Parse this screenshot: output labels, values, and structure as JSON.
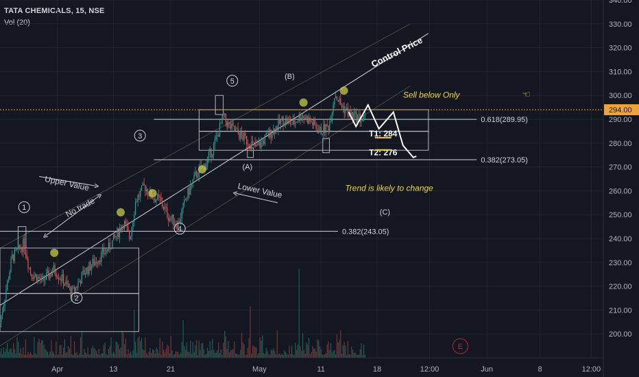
{
  "header": {
    "symbol": "TATA CHEMICALS, 15, NSE",
    "indicator": "Vol (20)"
  },
  "chart_data": {
    "type": "candlestick",
    "ylim": [
      190,
      340
    ],
    "y_ticks": [
      "340.00",
      "330.00",
      "320.00",
      "310.00",
      "300.00",
      "290.00",
      "280.00",
      "270.00",
      "260.00",
      "250.00",
      "240.00",
      "230.00",
      "220.00",
      "210.00",
      "200.00"
    ],
    "x_ticks": [
      "Apr",
      "13",
      "21",
      "May",
      "11",
      "18",
      "12:00",
      "Jun",
      "8",
      "12:00"
    ],
    "current_price": {
      "value": 294,
      "label": "294.00"
    },
    "price_path": [
      {
        "t": 0.0,
        "p": 205
      },
      {
        "t": 0.02,
        "p": 232
      },
      {
        "t": 0.04,
        "p": 238
      },
      {
        "t": 0.05,
        "p": 226
      },
      {
        "t": 0.07,
        "p": 222
      },
      {
        "t": 0.09,
        "p": 227
      },
      {
        "t": 0.1,
        "p": 224
      },
      {
        "t": 0.12,
        "p": 217
      },
      {
        "t": 0.14,
        "p": 226
      },
      {
        "t": 0.16,
        "p": 231
      },
      {
        "t": 0.18,
        "p": 236
      },
      {
        "t": 0.19,
        "p": 240
      },
      {
        "t": 0.205,
        "p": 247
      },
      {
        "t": 0.215,
        "p": 240
      },
      {
        "t": 0.225,
        "p": 256
      },
      {
        "t": 0.24,
        "p": 262
      },
      {
        "t": 0.25,
        "p": 258
      },
      {
        "t": 0.265,
        "p": 256
      },
      {
        "t": 0.28,
        "p": 249
      },
      {
        "t": 0.295,
        "p": 246
      },
      {
        "t": 0.31,
        "p": 258
      },
      {
        "t": 0.325,
        "p": 267
      },
      {
        "t": 0.34,
        "p": 271
      },
      {
        "t": 0.355,
        "p": 279
      },
      {
        "t": 0.37,
        "p": 291
      },
      {
        "t": 0.38,
        "p": 287
      },
      {
        "t": 0.395,
        "p": 284
      },
      {
        "t": 0.41,
        "p": 281
      },
      {
        "t": 0.425,
        "p": 278
      },
      {
        "t": 0.44,
        "p": 282
      },
      {
        "t": 0.455,
        "p": 286
      },
      {
        "t": 0.47,
        "p": 290
      },
      {
        "t": 0.485,
        "p": 288
      },
      {
        "t": 0.5,
        "p": 292
      },
      {
        "t": 0.515,
        "p": 289
      },
      {
        "t": 0.53,
        "p": 285
      },
      {
        "t": 0.545,
        "p": 287
      },
      {
        "t": 0.555,
        "p": 301
      },
      {
        "t": 0.565,
        "p": 296
      },
      {
        "t": 0.58,
        "p": 292
      },
      {
        "t": 0.6,
        "p": 290
      }
    ],
    "levels": [
      {
        "label": "0.618(289.95)",
        "value": 289.95
      },
      {
        "label": "0.382(273.05)",
        "value": 273.05
      },
      {
        "label": "0.382(243.05)",
        "value": 243.05
      }
    ],
    "targets": [
      {
        "label": "T1: 284",
        "value": 284
      },
      {
        "label": "T2: 276",
        "value": 276
      }
    ],
    "wave_labels": [
      {
        "label": "1",
        "style": "circle",
        "t": 0.04,
        "p": 252
      },
      {
        "label": "2",
        "style": "circle",
        "t": 0.127,
        "p": 214
      },
      {
        "label": "3",
        "style": "circle",
        "t": 0.232,
        "p": 282
      },
      {
        "label": "4",
        "style": "circle",
        "t": 0.298,
        "p": 243
      },
      {
        "label": "5",
        "style": "circle",
        "t": 0.385,
        "p": 305
      },
      {
        "label": "(A)",
        "style": "text",
        "t": 0.41,
        "p": 269
      },
      {
        "label": "(B)",
        "style": "text",
        "t": 0.48,
        "p": 307
      },
      {
        "label": "(C)",
        "style": "text",
        "t": 0.638,
        "p": 250
      }
    ],
    "annotations": [
      {
        "text": "Control Price",
        "color": "#ffffff",
        "bold": true,
        "angle": -27,
        "t": 0.66,
        "p": 317
      },
      {
        "text": "Upper Value",
        "color": "#d1d4dc",
        "angle": 12,
        "t": 0.11,
        "p": 262
      },
      {
        "text": "No trade",
        "color": "#d1d4dc",
        "angle": -28,
        "t": 0.135,
        "p": 252
      },
      {
        "text": "Lower Value",
        "color": "#d1d4dc",
        "angle": 12,
        "t": 0.43,
        "p": 259
      },
      {
        "text": "Sell below Only",
        "color": "#f2d541",
        "italic": true,
        "angle": 0,
        "t": 0.715,
        "p": 299
      },
      {
        "text": "Trend is likely to change",
        "color": "#f2d541",
        "italic": true,
        "angle": 0,
        "t": 0.645,
        "p": 260
      }
    ],
    "events": [
      {
        "label": "E"
      }
    ]
  }
}
